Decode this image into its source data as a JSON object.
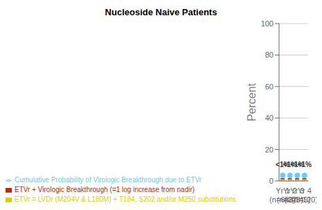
{
  "chart_data": {
    "type": "bar",
    "title": "Nucleoside Naive Patients",
    "ylabel": "Percent",
    "categories": [
      "Yr 1\n(n=663)",
      "Yr 2\n(n=278)",
      "Yr 3\n(n=149)",
      "Yr 4\n(n=120)"
    ],
    "series": [
      {
        "name": "ETVr = LVDr (M204V & L180M) + T184, S202 and/or M250 substitutions",
        "color": "#ddcc00",
        "values": [
          1.0,
          1.0,
          1.0,
          1.0
        ]
      },
      {
        "name": "ETVr + Virologic Breakthrough (=1 log increase from nadir)",
        "color": "#cc2200",
        "values": [
          0.8,
          0.8,
          0.8,
          0.8
        ]
      },
      {
        "name": "Cumulative Probability of Virologic Breakthrough due to ETVr",
        "type": "line",
        "color": "#66ccff",
        "marker": "circle",
        "line_style": "dotted",
        "values": [
          3.5,
          3.5,
          3.5,
          3.5
        ]
      }
    ],
    "stacked": true,
    "ylim": [
      0,
      100
    ],
    "yticks": [
      0,
      20,
      40,
      60,
      80,
      100
    ],
    "grid": true,
    "annotations": [
      {
        "text": "<1%",
        "x": "Yr 1\n(n=663)",
        "y": 6.5
      },
      {
        "text": "<1%",
        "x": "Yr 2\n(n=278)",
        "y": 6.5
      },
      {
        "text": "<1%",
        "x": "Yr 3\n(n=149)",
        "y": 6.5
      },
      {
        "text": "<1%",
        "x": "Yr 4\n(n=120)",
        "y": 6.5
      }
    ]
  }
}
